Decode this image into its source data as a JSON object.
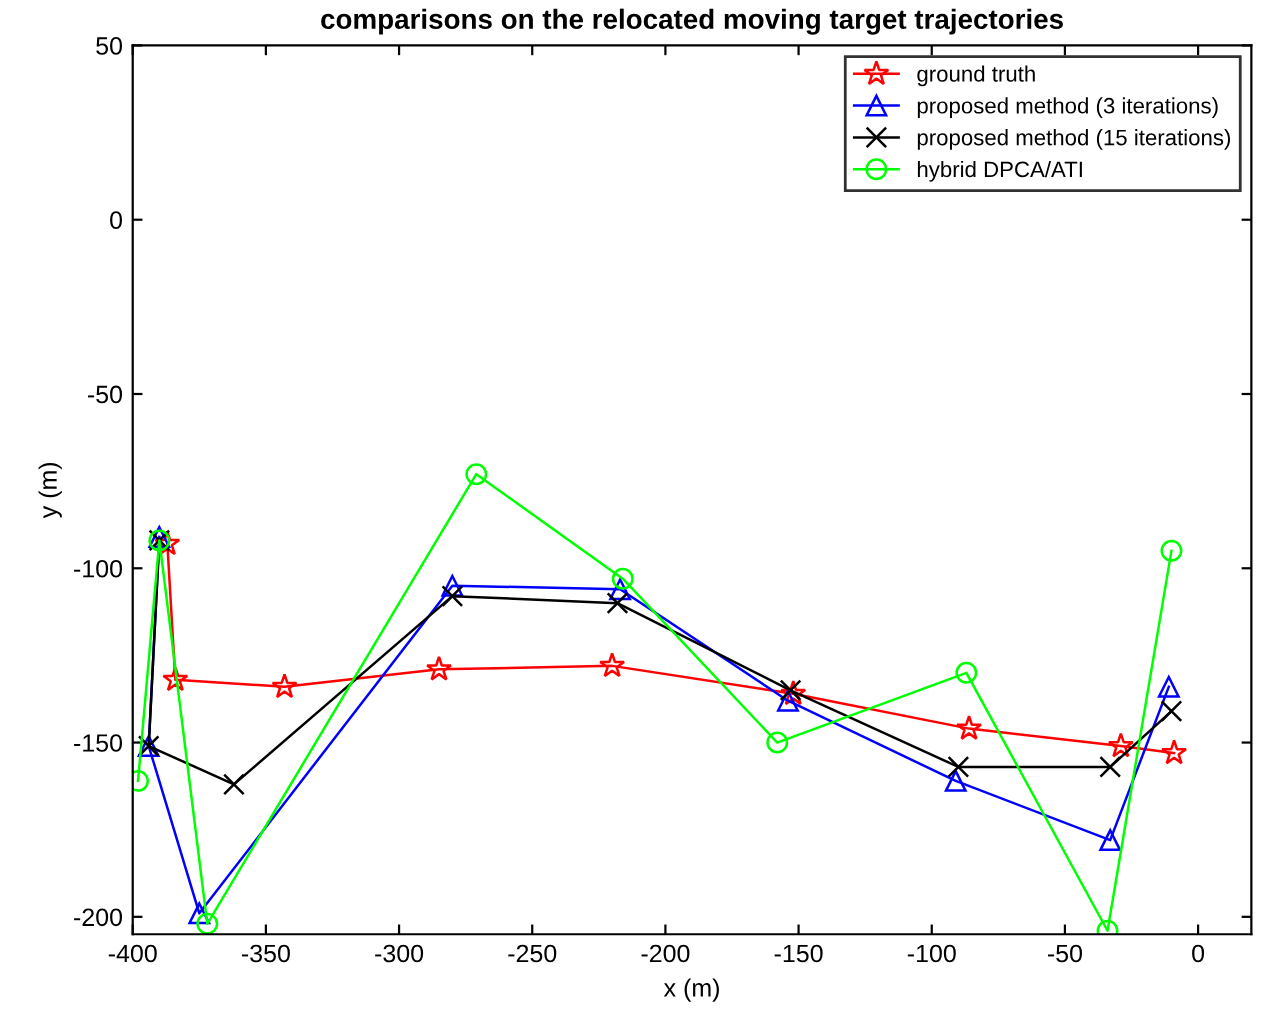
{
  "chart_data": {
    "type": "line",
    "title": "comparisons on the relocated moving target trajectories",
    "xlabel": "x (m)",
    "ylabel": "y (m)",
    "xlim": [
      -400,
      20
    ],
    "ylim": [
      -205,
      50
    ],
    "xticks": [
      -400,
      -350,
      -300,
      -250,
      -200,
      -150,
      -100,
      -50,
      0
    ],
    "yticks": [
      -200,
      -150,
      -100,
      -50,
      0,
      50
    ],
    "grid": false,
    "legend": "top right",
    "series": [
      {
        "name": "ground truth",
        "color": "#ff0000",
        "marker": "star",
        "x": [
          -387,
          -384,
          -343,
          -285,
          -220,
          -152,
          -86,
          -29,
          -9
        ],
        "values": [
          -93,
          -132,
          -134,
          -129,
          -128,
          -136,
          -146,
          -151,
          -153
        ]
      },
      {
        "name": "proposed method (3 iterations)",
        "color": "#0000ff",
        "marker": "triangle",
        "x": [
          -390,
          -394,
          -375,
          -280,
          -217,
          -154,
          -91,
          -33,
          -11
        ],
        "values": [
          -91,
          -151,
          -199,
          -105,
          -106,
          -138,
          -161,
          -178,
          -134
        ]
      },
      {
        "name": "proposed method (15 iterations)",
        "color": "#000000",
        "marker": "cross",
        "x": [
          -390,
          -394,
          -362,
          -280,
          -218,
          -153,
          -90,
          -33,
          -10
        ],
        "values": [
          -92,
          -151,
          -162,
          -108,
          -110,
          -135,
          -157,
          -157,
          -141
        ]
      },
      {
        "name": "hybrid DPCA/ATI",
        "color": "#00ff00",
        "marker": "circle",
        "x": [
          -398,
          -390,
          -372,
          -271,
          -216,
          -158,
          -87,
          -34,
          -10
        ],
        "values": [
          -161,
          -92,
          -202,
          -73,
          -103,
          -150,
          -130,
          -204,
          -95
        ]
      }
    ]
  }
}
